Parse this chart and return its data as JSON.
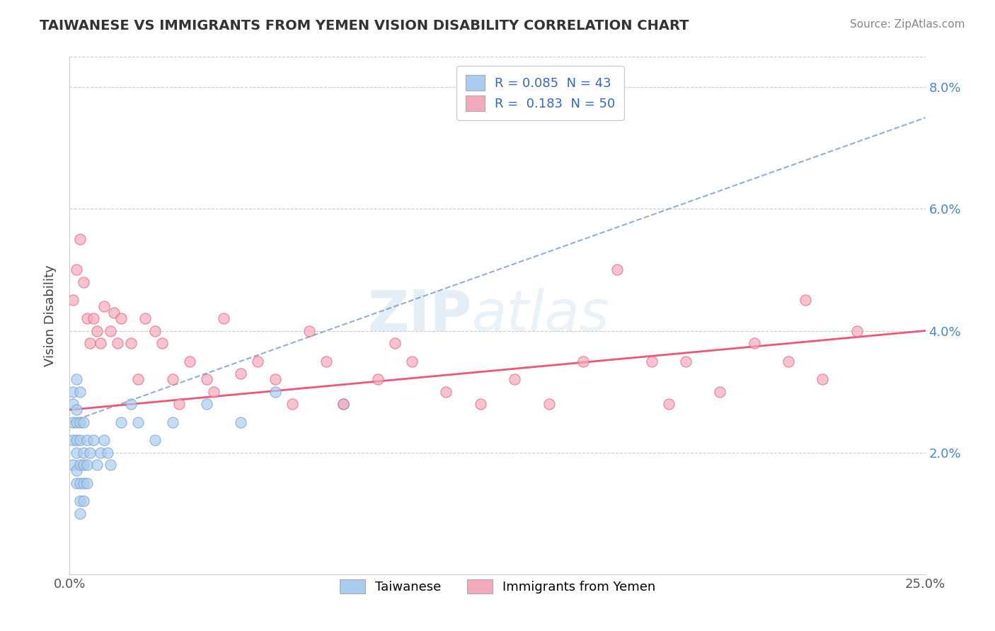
{
  "title": "TAIWANESE VS IMMIGRANTS FROM YEMEN VISION DISABILITY CORRELATION CHART",
  "source": "Source: ZipAtlas.com",
  "xlabel": "",
  "ylabel": "Vision Disability",
  "xlim": [
    0.0,
    0.25
  ],
  "ylim": [
    0.0,
    0.085
  ],
  "xticks": [
    0.0,
    0.05,
    0.1,
    0.15,
    0.2,
    0.25
  ],
  "xtick_labels": [
    "0.0%",
    "",
    "",
    "",
    "",
    "25.0%"
  ],
  "yticks": [
    0.0,
    0.02,
    0.04,
    0.06,
    0.08
  ],
  "ytick_labels": [
    "",
    "2.0%",
    "4.0%",
    "6.0%",
    "8.0%"
  ],
  "R_taiwanese": 0.085,
  "N_taiwanese": 43,
  "R_yemen": 0.183,
  "N_yemen": 50,
  "color_taiwanese": "#aaccee",
  "color_yemen": "#f4aabb",
  "trendline_taiwanese": "#7799cc",
  "trendline_yemen": "#ee5577",
  "watermark": "ZIPatlas",
  "background_color": "#ffffff",
  "legend_labels": [
    "Taiwanese",
    "Immigrants from Yemen"
  ],
  "taiwanese_x": [
    0.001,
    0.001,
    0.001,
    0.001,
    0.001,
    0.002,
    0.002,
    0.002,
    0.002,
    0.002,
    0.002,
    0.002,
    0.003,
    0.003,
    0.003,
    0.003,
    0.003,
    0.003,
    0.003,
    0.004,
    0.004,
    0.004,
    0.004,
    0.004,
    0.005,
    0.005,
    0.005,
    0.006,
    0.007,
    0.008,
    0.009,
    0.01,
    0.011,
    0.012,
    0.015,
    0.018,
    0.02,
    0.025,
    0.03,
    0.04,
    0.05,
    0.06,
    0.08
  ],
  "taiwanese_y": [
    0.025,
    0.03,
    0.028,
    0.022,
    0.018,
    0.027,
    0.032,
    0.025,
    0.02,
    0.015,
    0.022,
    0.017,
    0.03,
    0.025,
    0.022,
    0.018,
    0.015,
    0.012,
    0.01,
    0.025,
    0.02,
    0.018,
    0.015,
    0.012,
    0.022,
    0.018,
    0.015,
    0.02,
    0.022,
    0.018,
    0.02,
    0.022,
    0.02,
    0.018,
    0.025,
    0.028,
    0.025,
    0.022,
    0.025,
    0.028,
    0.025,
    0.03,
    0.028
  ],
  "yemen_x": [
    0.001,
    0.002,
    0.003,
    0.004,
    0.005,
    0.006,
    0.007,
    0.008,
    0.009,
    0.01,
    0.012,
    0.013,
    0.014,
    0.015,
    0.018,
    0.02,
    0.022,
    0.025,
    0.027,
    0.03,
    0.032,
    0.035,
    0.04,
    0.042,
    0.045,
    0.05,
    0.055,
    0.06,
    0.065,
    0.07,
    0.075,
    0.08,
    0.09,
    0.095,
    0.1,
    0.11,
    0.12,
    0.13,
    0.14,
    0.15,
    0.16,
    0.17,
    0.175,
    0.18,
    0.19,
    0.2,
    0.21,
    0.215,
    0.22,
    0.23
  ],
  "yemen_y": [
    0.045,
    0.05,
    0.055,
    0.048,
    0.042,
    0.038,
    0.042,
    0.04,
    0.038,
    0.044,
    0.04,
    0.043,
    0.038,
    0.042,
    0.038,
    0.032,
    0.042,
    0.04,
    0.038,
    0.032,
    0.028,
    0.035,
    0.032,
    0.03,
    0.042,
    0.033,
    0.035,
    0.032,
    0.028,
    0.04,
    0.035,
    0.028,
    0.032,
    0.038,
    0.035,
    0.03,
    0.028,
    0.032,
    0.028,
    0.035,
    0.05,
    0.035,
    0.028,
    0.035,
    0.03,
    0.038,
    0.035,
    0.045,
    0.032,
    0.04
  ],
  "tw_trend_x0": 0.0,
  "tw_trend_y0": 0.025,
  "tw_trend_x1": 0.25,
  "tw_trend_y1": 0.075,
  "ye_trend_x0": 0.0,
  "ye_trend_y0": 0.027,
  "ye_trend_x1": 0.25,
  "ye_trend_y1": 0.04
}
